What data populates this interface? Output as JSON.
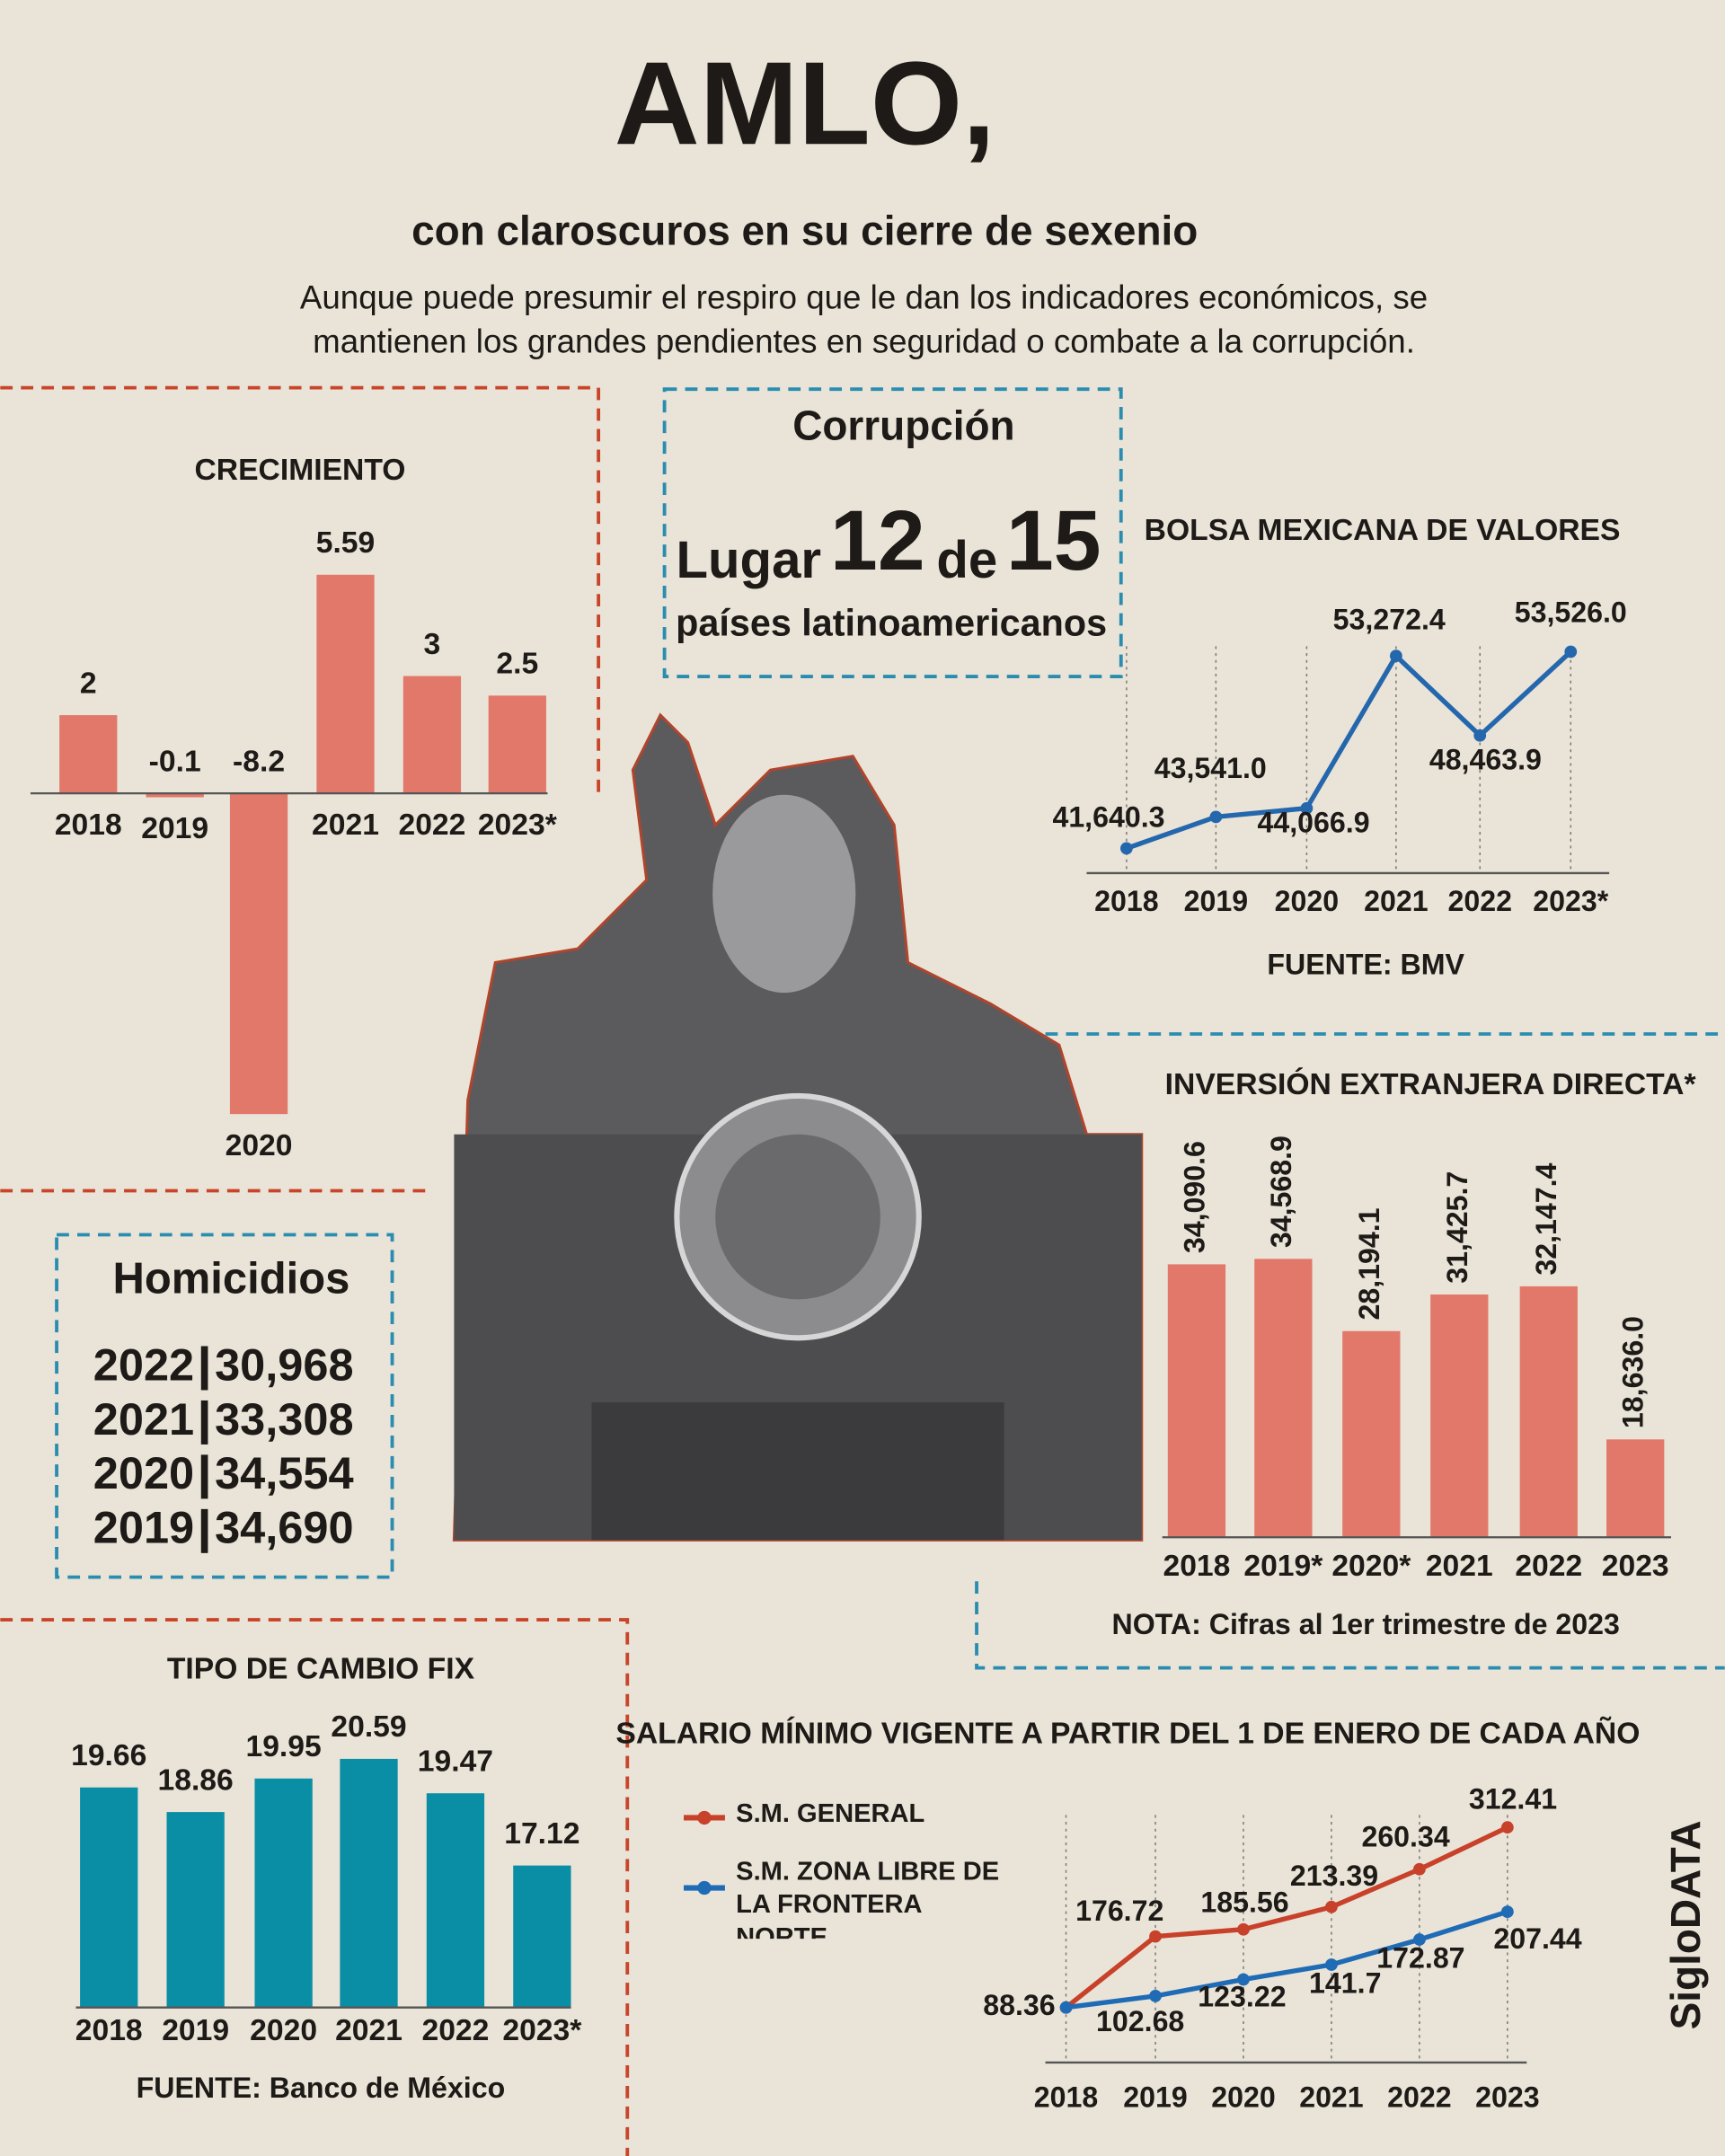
{
  "header": {
    "title": "AMLO,",
    "subtitle": "con claroscuros en su cierre de sexenio",
    "description": [
      "Aunque puede presumir el respiro que le dan los indicadores económicos, se",
      "mantienen los grandes pendientes en seguridad o combate a la corrupción."
    ]
  },
  "corruption": {
    "title": "Corrupción",
    "rank_prefix": "Lugar",
    "rank": "12",
    "rank_joiner": "de",
    "rank_total": "15",
    "caption": "países latinoamericanos"
  },
  "homicides": {
    "title": "Homicidios",
    "rows": [
      [
        "2022",
        "30,968"
      ],
      [
        "2021",
        "33,308"
      ],
      [
        "2020",
        "34,554"
      ],
      [
        "2019",
        "34,690"
      ]
    ]
  },
  "brand": "SigloDATA",
  "chart_data": [
    {
      "type": "bar",
      "title": "CRECIMIENTO",
      "categories": [
        "2018",
        "2019",
        "2020",
        "2021",
        "2022",
        "2023*"
      ],
      "values": [
        2,
        -0.1,
        -8.2,
        5.59,
        3,
        2.5
      ],
      "color": "#e2786a"
    },
    {
      "type": "line",
      "title": "BOLSA MEXICANA DE VALORES",
      "categories": [
        "2018",
        "2019",
        "2020",
        "2021",
        "2022",
        "2023*"
      ],
      "values": [
        41640.3,
        43541.0,
        44066.9,
        53272.4,
        48463.9,
        53526.0
      ],
      "value_labels": [
        "41,640.3",
        "43,541.0",
        "44,066.9",
        "53,272.4",
        "48,463.9",
        "53,526.0"
      ],
      "color": "#2467ad",
      "note": "FUENTE: BMV"
    },
    {
      "type": "bar",
      "title": "INVERSIÓN EXTRANJERA DIRECTA*",
      "categories": [
        "2018",
        "2019*",
        "2020*",
        "2021",
        "2022",
        "2023"
      ],
      "values": [
        34090.6,
        34568.9,
        28194.1,
        31425.7,
        32147.4,
        18636.0
      ],
      "value_labels": [
        "34,090.6",
        "34,568.9",
        "28,194.1",
        "31,425.7",
        "32,147.4",
        "18,636.0"
      ],
      "color": "#e2786a",
      "ylim": [
        10000,
        35000
      ],
      "note": "NOTA: Cifras al 1er trimestre de 2023"
    },
    {
      "type": "bar",
      "title": "TIPO DE CAMBIO FIX",
      "categories": [
        "2018",
        "2019",
        "2020",
        "2021",
        "2022",
        "2023*"
      ],
      "values": [
        19.66,
        18.86,
        19.95,
        20.59,
        19.47,
        17.12
      ],
      "color": "#0a8ea6",
      "ylim": [
        12.5,
        21
      ],
      "note": "FUENTE: Banco de México"
    },
    {
      "type": "line",
      "title": "SALARIO MÍNIMO VIGENTE A PARTIR DEL 1  DE ENERO DE CADA AÑO",
      "categories": [
        "2018",
        "2019",
        "2020",
        "2021",
        "2022",
        "2023"
      ],
      "series": [
        {
          "name": "S.M. GENERAL",
          "color": "#c8412a",
          "values": [
            88.36,
            176.72,
            185.56,
            213.39,
            260.34,
            312.41
          ]
        },
        {
          "name": "S.M. ZONA LIBRE DE LA FRONTERA NORTE",
          "color": "#1f6bb5",
          "values": [
            88.36,
            102.68,
            123.22,
            141.7,
            172.87,
            207.44
          ]
        }
      ]
    }
  ]
}
